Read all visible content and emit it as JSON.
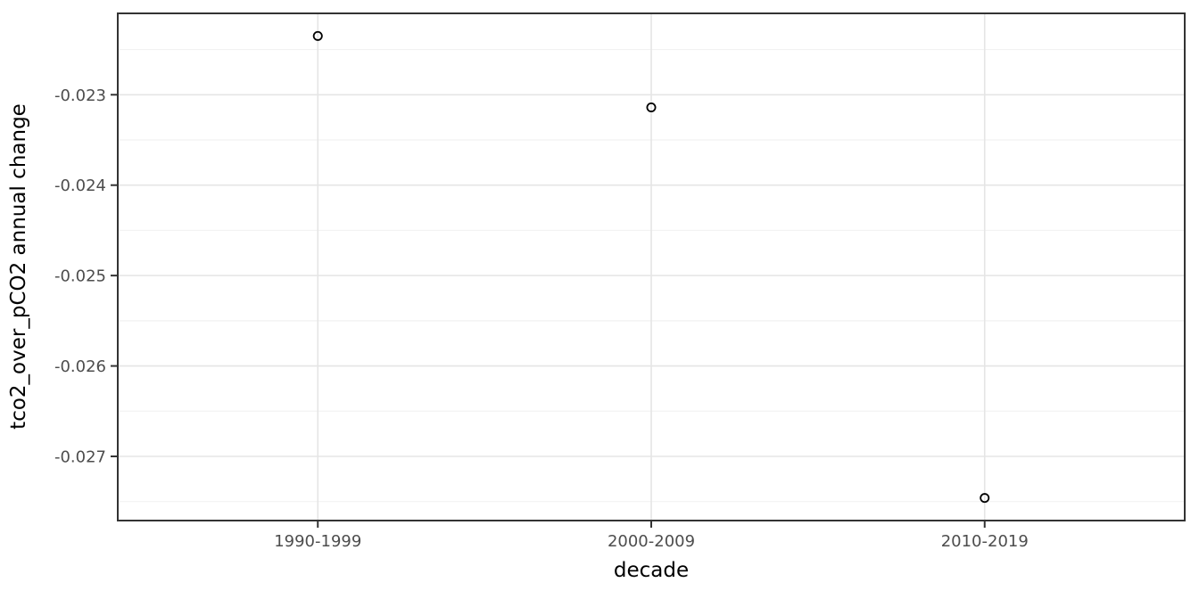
{
  "chart_data": {
    "type": "scatter",
    "title": "",
    "xlabel": "decade",
    "ylabel": "tco2_over_pCO2 annual change",
    "categories": [
      "1990-1999",
      "2000-2009",
      "2010-2019"
    ],
    "x_positions": [
      1,
      2,
      3
    ],
    "values": [
      -0.02235,
      -0.02314,
      -0.02746
    ],
    "y_ticks": [
      -0.023,
      -0.024,
      -0.025,
      -0.026,
      -0.027
    ],
    "y_tick_labels": [
      "-0.023",
      "-0.024",
      "-0.025",
      "-0.026",
      "-0.027"
    ],
    "y_minor_ticks": [
      -0.0225,
      -0.0235,
      -0.0245,
      -0.0255,
      -0.0265,
      -0.0275
    ],
    "xlim": [
      0.4,
      3.6
    ],
    "ylim": [
      -0.02771,
      -0.0221
    ],
    "grid": "horizontal major+minor, vertical major at categories",
    "legend": "none",
    "point_style": "open-circle",
    "style": {
      "background": "#ffffff",
      "panel_background": "#ffffff",
      "panel_border": "#333333",
      "grid_major": "#e5e5e5",
      "grid_minor": "#f2f2f2",
      "tick_mark_color": "#333333",
      "tick_label_color": "#4d4d4d",
      "axis_title_color": "#000000",
      "point_color": "#000000"
    }
  }
}
